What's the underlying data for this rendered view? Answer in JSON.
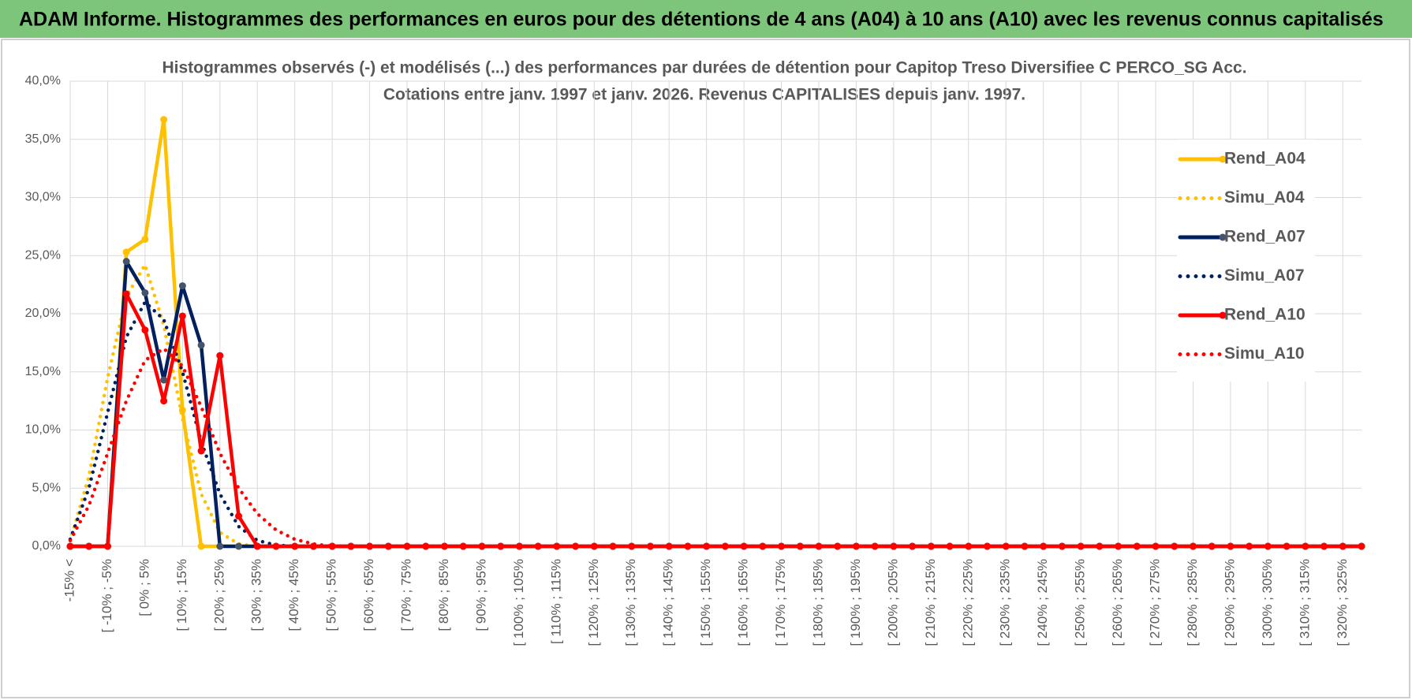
{
  "page_header": "ADAM Informe. Histogrammes des performances en euros pour des détentions de 4 ans (A04) à 10 ans (A10) avec les revenus connus capitalisés",
  "chart_data": {
    "type": "line",
    "title": "Histogrammes observés (-) et modélisés (...) des performances par durées de détention pour Capitop Treso Diversifiee C PERCO_SG Acc.",
    "subtitle": "Cotations entre janv. 1997 et janv. 2026. Revenus CAPITALISES depuis janv. 1997.",
    "categories": [
      "-15% <",
      null,
      "[ -10% ; -5%",
      null,
      "[ 0% ; 5%",
      null,
      "[ 10% ; 15%",
      null,
      "[ 20% ; 25%",
      null,
      "[ 30% ; 35%",
      null,
      "[ 40% ; 45%",
      null,
      "[ 50% ; 55%",
      null,
      "[ 60% ; 65%",
      null,
      "[ 70% ; 75%",
      null,
      "[ 80% ; 85%",
      null,
      "[ 90% ; 95%",
      null,
      "[ 100% ; 105%",
      null,
      "[ 110% ; 115%",
      null,
      "[ 120% ; 125%",
      null,
      "[ 130% ; 135%",
      null,
      "[ 140% ; 145%",
      null,
      "[ 150% ; 155%",
      null,
      "[ 160% ; 165%",
      null,
      "[ 170% ; 175%",
      null,
      "[ 180% ; 185%",
      null,
      "[ 190% ; 195%",
      null,
      "[ 200% ; 205%",
      null,
      "[ 210% ; 215%",
      null,
      "[ 220% ; 225%",
      null,
      "[ 230% ; 235%",
      null,
      "[ 240% ; 245%",
      null,
      "[ 250% ; 255%",
      null,
      "[ 260% ; 265%",
      null,
      "[ 270% ; 275%",
      null,
      "[ 280% ; 285%",
      null,
      "[ 290% ; 295%",
      null,
      "[ 300% ; 305%",
      null,
      "[ 310% ; 315%",
      null,
      "[ 320% ; 325%",
      null
    ],
    "series": [
      {
        "name": "Rend_A04",
        "color": "#FFC000",
        "style": "solid",
        "markers": true,
        "values": [
          0,
          0,
          0,
          25.3,
          26.4,
          36.7,
          11.7,
          0,
          0,
          0,
          0,
          0,
          0,
          0,
          0,
          0,
          0,
          0,
          0,
          0,
          0,
          0,
          0,
          0,
          0,
          0,
          0,
          0,
          0,
          0,
          0,
          0,
          0,
          0,
          0,
          0,
          0,
          0,
          0,
          0,
          0,
          0,
          0,
          0,
          0,
          0,
          0,
          0,
          0,
          0,
          0,
          0,
          0,
          0,
          0,
          0,
          0,
          0,
          0,
          0,
          0,
          0,
          0,
          0,
          0,
          0,
          0,
          0,
          0,
          0
        ]
      },
      {
        "name": "Simu_A04",
        "color": "#FFC000",
        "style": "dotted",
        "markers": false,
        "values": [
          0.5,
          6,
          14.5,
          21.5,
          24.2,
          19,
          11,
          4.5,
          1.2,
          0.2,
          0,
          0,
          0,
          0,
          0,
          0,
          0,
          0,
          0,
          0,
          0,
          0,
          0,
          0,
          0,
          0,
          0,
          0,
          0,
          0,
          0,
          0,
          0,
          0,
          0,
          0,
          0,
          0,
          0,
          0,
          0,
          0,
          0,
          0,
          0,
          0,
          0,
          0,
          0,
          0,
          0,
          0,
          0,
          0,
          0,
          0,
          0,
          0,
          0,
          0,
          0,
          0,
          0,
          0,
          0,
          0,
          0,
          0,
          0,
          0
        ]
      },
      {
        "name": "Rend_A07",
        "color": "#002060",
        "marker_color": "#44546A",
        "style": "solid",
        "markers": true,
        "values": [
          0,
          0,
          0,
          24.5,
          21.8,
          14.3,
          22.4,
          17.3,
          0,
          0,
          0,
          0,
          0,
          0,
          0,
          0,
          0,
          0,
          0,
          0,
          0,
          0,
          0,
          0,
          0,
          0,
          0,
          0,
          0,
          0,
          0,
          0,
          0,
          0,
          0,
          0,
          0,
          0,
          0,
          0,
          0,
          0,
          0,
          0,
          0,
          0,
          0,
          0,
          0,
          0,
          0,
          0,
          0,
          0,
          0,
          0,
          0,
          0,
          0,
          0,
          0,
          0,
          0,
          0,
          0,
          0,
          0,
          0,
          0,
          0
        ]
      },
      {
        "name": "Simu_A07",
        "color": "#002060",
        "style": "dotted",
        "markers": false,
        "values": [
          0.6,
          5,
          11.5,
          18,
          21,
          19.5,
          15,
          9,
          4.5,
          1.7,
          0.5,
          0.1,
          0,
          0,
          0,
          0,
          0,
          0,
          0,
          0,
          0,
          0,
          0,
          0,
          0,
          0,
          0,
          0,
          0,
          0,
          0,
          0,
          0,
          0,
          0,
          0,
          0,
          0,
          0,
          0,
          0,
          0,
          0,
          0,
          0,
          0,
          0,
          0,
          0,
          0,
          0,
          0,
          0,
          0,
          0,
          0,
          0,
          0,
          0,
          0,
          0,
          0,
          0,
          0,
          0,
          0,
          0,
          0,
          0,
          0
        ]
      },
      {
        "name": "Rend_A10",
        "color": "#FF0000",
        "style": "solid",
        "markers": true,
        "values": [
          0,
          0,
          0,
          21.7,
          18.6,
          12.5,
          19.8,
          8.2,
          16.4,
          2.6,
          0,
          0,
          0,
          0,
          0,
          0,
          0,
          0,
          0,
          0,
          0,
          0,
          0,
          0,
          0,
          0,
          0,
          0,
          0,
          0,
          0,
          0,
          0,
          0,
          0,
          0,
          0,
          0,
          0,
          0,
          0,
          0,
          0,
          0,
          0,
          0,
          0,
          0,
          0,
          0,
          0,
          0,
          0,
          0,
          0,
          0,
          0,
          0,
          0,
          0,
          0,
          0,
          0,
          0,
          0,
          0,
          0,
          0,
          0,
          0
        ]
      },
      {
        "name": "Simu_A10",
        "color": "#FF0000",
        "style": "dotted",
        "markers": false,
        "values": [
          0.5,
          3.5,
          8,
          12.5,
          16,
          17,
          15.5,
          12,
          8,
          5,
          2.8,
          1.4,
          0.6,
          0.2,
          0,
          0,
          0,
          0,
          0,
          0,
          0,
          0,
          0,
          0,
          0,
          0,
          0,
          0,
          0,
          0,
          0,
          0,
          0,
          0,
          0,
          0,
          0,
          0,
          0,
          0,
          0,
          0,
          0,
          0,
          0,
          0,
          0,
          0,
          0,
          0,
          0,
          0,
          0,
          0,
          0,
          0,
          0,
          0,
          0,
          0,
          0,
          0,
          0,
          0,
          0,
          0,
          0,
          0,
          0,
          0
        ]
      }
    ],
    "ylim": [
      0,
      40
    ],
    "yticks": [
      {
        "value": 0,
        "label": "0,0%"
      },
      {
        "value": 5,
        "label": "5,0%"
      },
      {
        "value": 10,
        "label": "10,0%"
      },
      {
        "value": 15,
        "label": "15,0%"
      },
      {
        "value": 20,
        "label": "20,0%"
      },
      {
        "value": 25,
        "label": "25,0%"
      },
      {
        "value": 30,
        "label": "30,0%"
      },
      {
        "value": 35,
        "label": "35,0%"
      },
      {
        "value": 40,
        "label": "40,0%"
      }
    ],
    "grid": true,
    "legend": "right"
  }
}
